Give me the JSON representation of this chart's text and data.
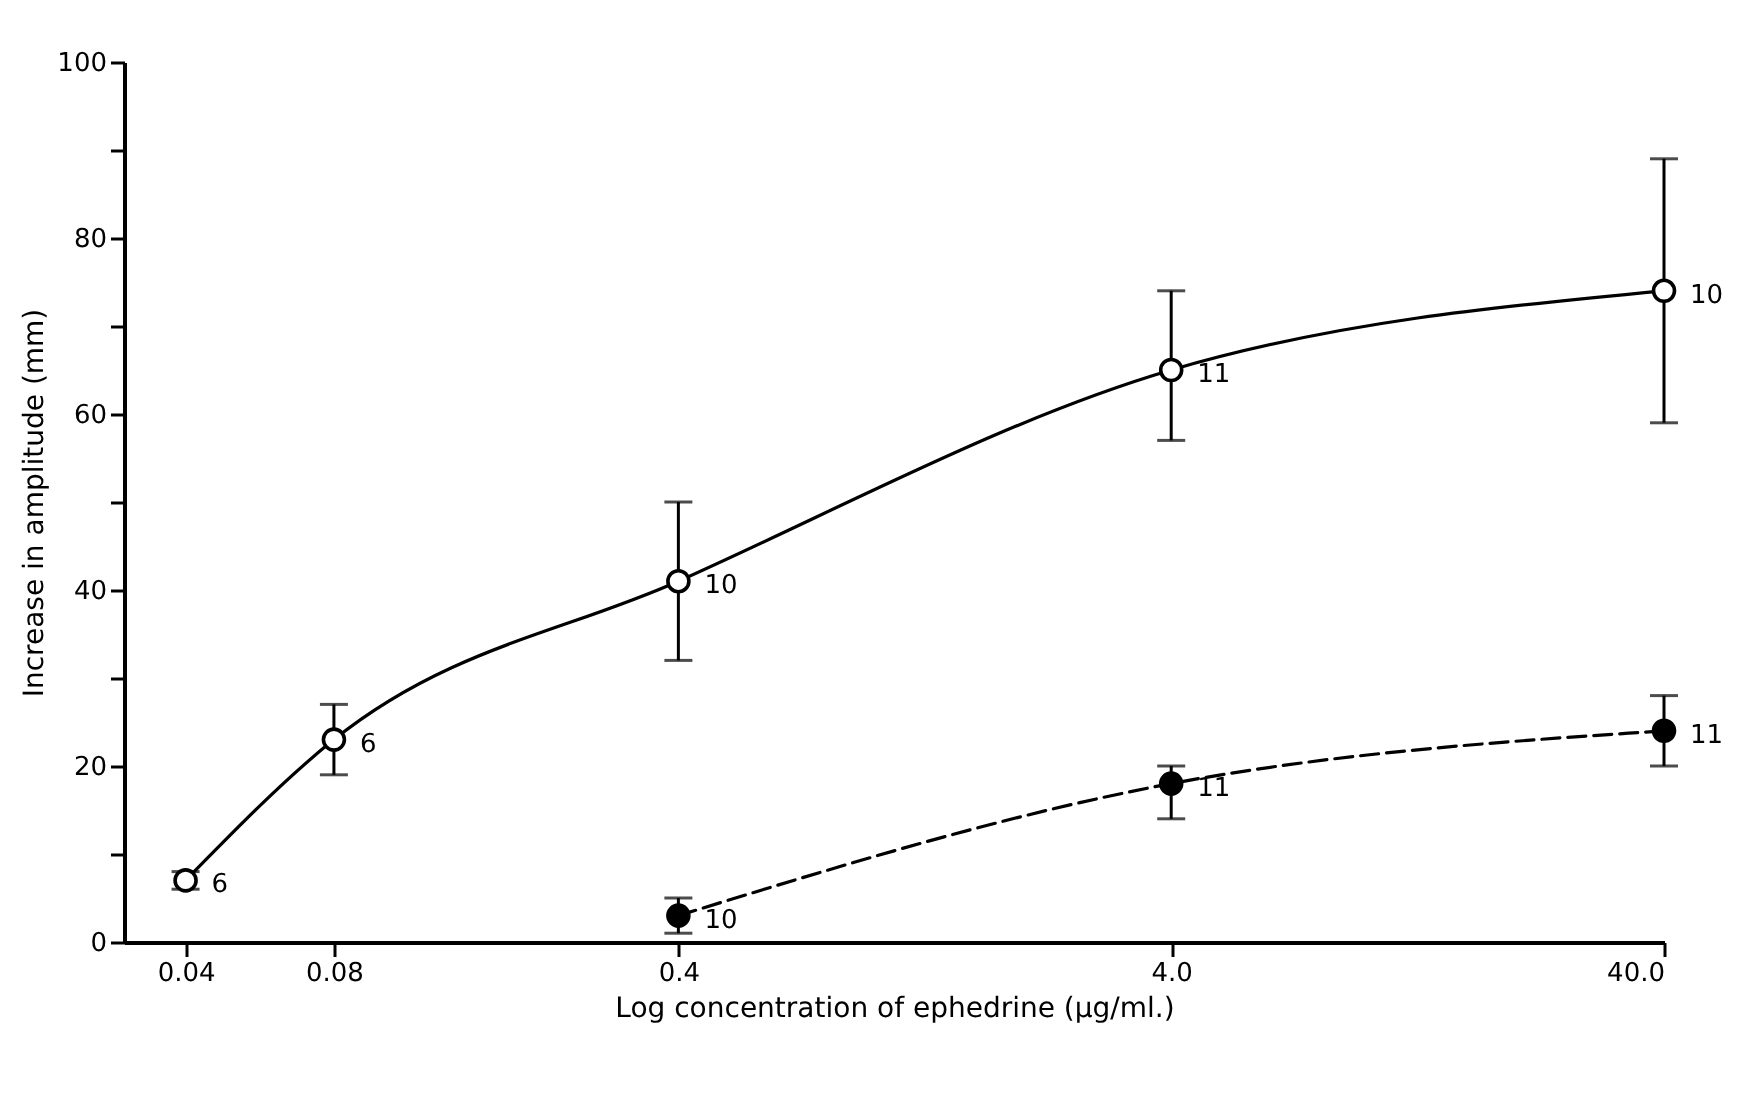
{
  "chart_data": {
    "type": "line",
    "xlabel": "Log concentration of ephedrine (μg/ml.)",
    "ylabel": "Increase in amplitude (mm)",
    "log": "x",
    "xlim": [
      0.03,
      40
    ],
    "xticks": [
      0.04,
      0.08,
      0.4,
      {
        "value": 4,
        "label": "4.0"
      },
      {
        "value": 40,
        "label": "40.0"
      }
    ],
    "ylim": [
      0,
      100
    ],
    "yticks": [
      0,
      {
        "value": 10,
        "label": null
      },
      20,
      {
        "value": 30,
        "label": null
      },
      40,
      {
        "value": 50,
        "label": null
      },
      60,
      {
        "value": 70,
        "label": null
      },
      80,
      {
        "value": 90,
        "label": null
      },
      100
    ],
    "grid": false,
    "marker": "circle",
    "series": [
      {
        "color": "#000000",
        "line_style": "solid",
        "x": [
          0.04,
          0.08,
          0.4,
          4,
          40
        ],
        "values": [
          7,
          23,
          41,
          65,
          74
        ],
        "errors": [
          [
            6,
            8
          ],
          [
            19,
            27
          ],
          [
            32,
            50
          ],
          [
            57,
            74
          ],
          [
            59,
            89
          ]
        ]
      },
      {
        "color": "#000000",
        "line_style": "dashed",
        "x": [
          0.4,
          4,
          40
        ],
        "values": [
          3,
          18,
          24
        ],
        "errors": [
          [
            1,
            5
          ],
          [
            14,
            20
          ],
          [
            20,
            28
          ]
        ]
      }
    ],
    "annotations": [
      {
        "text": "6",
        "x": 0.04,
        "y": 7
      },
      {
        "text": "6",
        "x": 0.08,
        "y": 23
      },
      {
        "text": "10",
        "x": 0.4,
        "y": 41
      },
      {
        "text": "11",
        "x": 4,
        "y": 65
      },
      {
        "text": "10",
        "x": 40,
        "y": 74
      },
      {
        "text": "10",
        "x": 0.4,
        "y": 3
      },
      {
        "text": "11",
        "x": 4,
        "y": 18
      },
      {
        "text": "11",
        "x": 40,
        "y": 24
      }
    ]
  }
}
